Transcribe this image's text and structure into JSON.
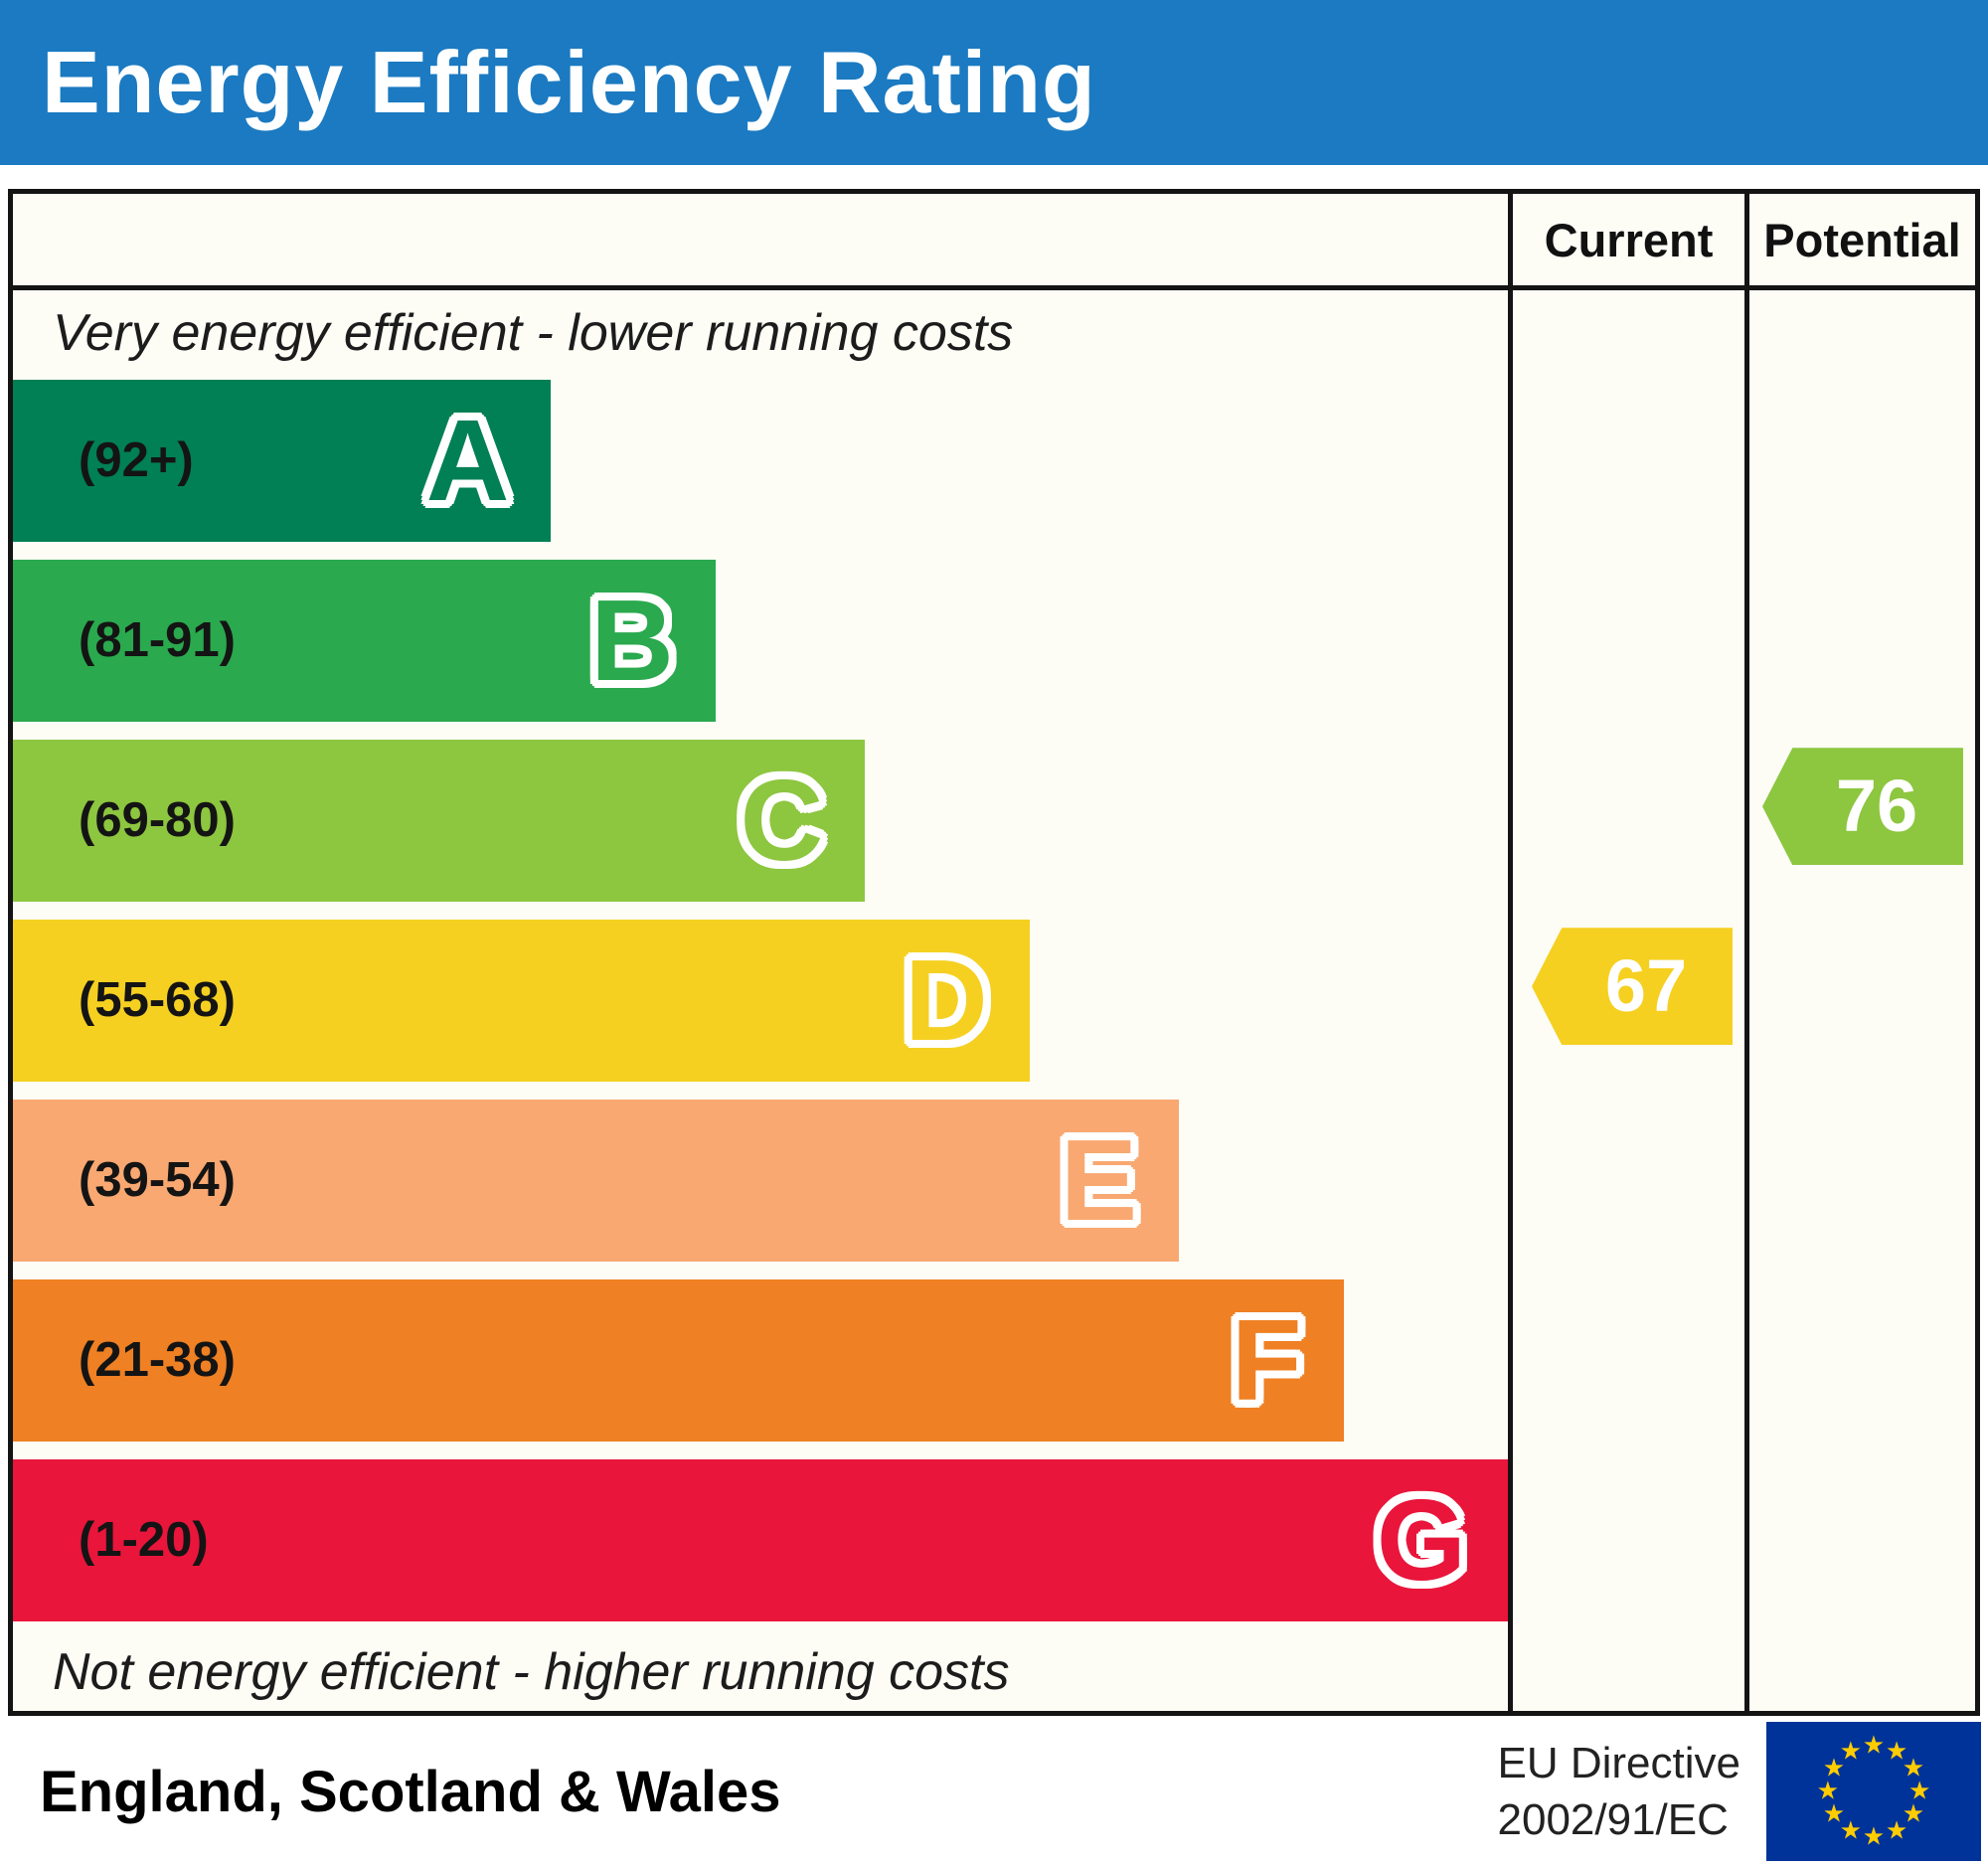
{
  "header": {
    "title": "Energy Efficiency Rating"
  },
  "columns": {
    "current": "Current",
    "potential": "Potential"
  },
  "chart_data": {
    "type": "bar",
    "title": "Energy Efficiency Rating",
    "top_label": "Very energy efficient - lower running costs",
    "bottom_label": "Not energy efficient - higher running costs",
    "bands": [
      {
        "letter": "A",
        "range": "(92+)",
        "min": 92,
        "max": 100,
        "color": "#008054",
        "width_pct": 36
      },
      {
        "letter": "B",
        "range": "(81-91)",
        "min": 81,
        "max": 91,
        "color": "#2aa94e",
        "width_pct": 47
      },
      {
        "letter": "C",
        "range": "(69-80)",
        "min": 69,
        "max": 80,
        "color": "#8dc63f",
        "width_pct": 57
      },
      {
        "letter": "D",
        "range": "(55-68)",
        "min": 55,
        "max": 68,
        "color": "#f5d021",
        "width_pct": 68
      },
      {
        "letter": "E",
        "range": "(39-54)",
        "min": 39,
        "max": 54,
        "color": "#f8a870",
        "width_pct": 78
      },
      {
        "letter": "F",
        "range": "(21-38)",
        "min": 21,
        "max": 38,
        "color": "#ef8023",
        "width_pct": 89
      },
      {
        "letter": "G",
        "range": "(1-20)",
        "min": 1,
        "max": 20,
        "color": "#e9153b",
        "width_pct": 100
      }
    ],
    "current": {
      "value": 67,
      "band": "D",
      "color": "#f5d021"
    },
    "potential": {
      "value": 76,
      "band": "C",
      "color": "#8dc63f"
    }
  },
  "footer": {
    "region": "England, Scotland & Wales",
    "directive_line1": "EU Directive",
    "directive_line2": "2002/91/EC",
    "eu_flag": {
      "background": "#003399",
      "star_color": "#ffcc00",
      "star_count": 12
    }
  }
}
